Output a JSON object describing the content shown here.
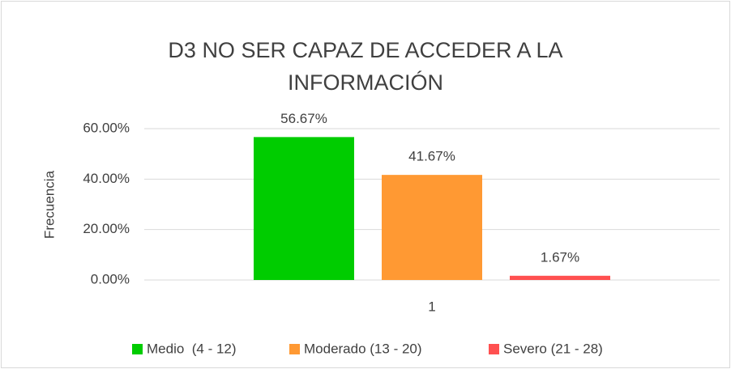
{
  "chart_data": {
    "type": "bar",
    "title": "D3 NO SER CAPAZ DE ACCEDER A LA INFORMACIÓN",
    "y_label": "Frecuencia",
    "categories": [
      "1"
    ],
    "series": [
      {
        "name": "Medio  (4 - 12)",
        "color": "#00cc00",
        "values": [
          56.67
        ],
        "value_labels": [
          "56.67%"
        ]
      },
      {
        "name": "Moderado (13 - 20)",
        "color": "#ff9933",
        "values": [
          41.67
        ],
        "value_labels": [
          "41.67%"
        ]
      },
      {
        "name": "Severo (21 - 28)",
        "color": "#ff5050",
        "values": [
          1.67
        ],
        "value_labels": [
          "1.67%"
        ]
      }
    ],
    "ylim": [
      0,
      60
    ],
    "yticks": [
      {
        "value": 0,
        "label": "0.00%"
      },
      {
        "value": 20,
        "label": "20.00%"
      },
      {
        "value": 40,
        "label": "40.00%"
      },
      {
        "value": 60,
        "label": "60.00%"
      }
    ],
    "grid": true,
    "legend": "bottom"
  }
}
